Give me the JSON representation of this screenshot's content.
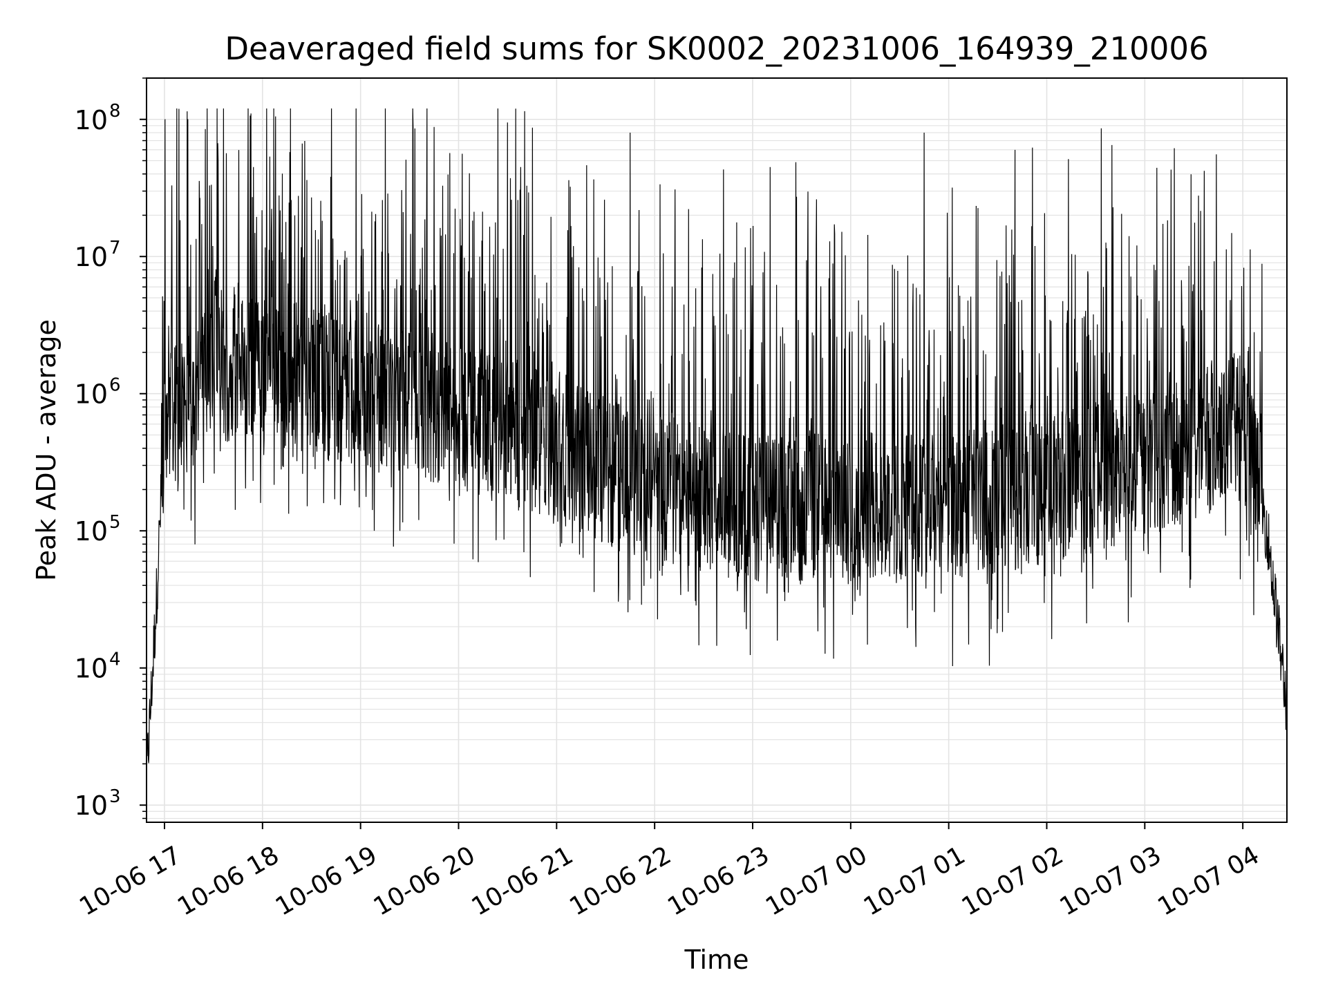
{
  "chart_data": {
    "type": "line",
    "title": "Deaveraged field sums for SK0002_20231006_164939_210006",
    "xlabel": "Time",
    "ylabel": "Peak ADU - average",
    "x_type": "datetime",
    "xlim": [
      "2023-10-06 16:49",
      "2023-10-07 04:27"
    ],
    "yscale": "log",
    "ylim": [
      750,
      200000000
    ],
    "grid": true,
    "line_color": "#000000",
    "grid_color": "#e3e3e3",
    "x_ticks": [
      {
        "t": "2023-10-06 17:00",
        "label": "10-06 17"
      },
      {
        "t": "2023-10-06 18:00",
        "label": "10-06 18"
      },
      {
        "t": "2023-10-06 19:00",
        "label": "10-06 19"
      },
      {
        "t": "2023-10-06 20:00",
        "label": "10-06 20"
      },
      {
        "t": "2023-10-06 21:00",
        "label": "10-06 21"
      },
      {
        "t": "2023-10-06 22:00",
        "label": "10-06 22"
      },
      {
        "t": "2023-10-06 23:00",
        "label": "10-06 23"
      },
      {
        "t": "2023-10-07 00:00",
        "label": "10-07 00"
      },
      {
        "t": "2023-10-07 01:00",
        "label": "10-07 01"
      },
      {
        "t": "2023-10-07 02:00",
        "label": "10-07 02"
      },
      {
        "t": "2023-10-07 03:00",
        "label": "10-07 03"
      },
      {
        "t": "2023-10-07 04:00",
        "label": "10-07 04"
      }
    ],
    "y_ticks": [
      {
        "value": 1000,
        "base": "10",
        "exp": "3"
      },
      {
        "value": 10000,
        "base": "10",
        "exp": "4"
      },
      {
        "value": 100000,
        "base": "10",
        "exp": "5"
      },
      {
        "value": 1000000,
        "base": "10",
        "exp": "6"
      },
      {
        "value": 10000000,
        "base": "10",
        "exp": "7"
      },
      {
        "value": 100000000,
        "base": "10",
        "exp": "8"
      }
    ],
    "series": [
      {
        "values_hourly_baseline": [
          {
            "t": "2023-10-06 16:49",
            "y": 1500
          },
          {
            "t": "2023-10-06 16:55",
            "y": 30000
          },
          {
            "t": "2023-10-06 17:00",
            "y": 600000
          },
          {
            "t": "2023-10-06 17:30",
            "y": 1500000
          },
          {
            "t": "2023-10-06 18:00",
            "y": 1500000
          },
          {
            "t": "2023-10-06 19:00",
            "y": 1000000
          },
          {
            "t": "2023-10-06 20:00",
            "y": 700000
          },
          {
            "t": "2023-10-06 21:00",
            "y": 400000
          },
          {
            "t": "2023-10-06 22:00",
            "y": 200000
          },
          {
            "t": "2023-10-06 23:00",
            "y": 150000
          },
          {
            "t": "2023-10-07 00:00",
            "y": 150000
          },
          {
            "t": "2023-10-07 01:00",
            "y": 150000
          },
          {
            "t": "2023-10-07 02:00",
            "y": 200000
          },
          {
            "t": "2023-10-07 03:00",
            "y": 300000
          },
          {
            "t": "2023-10-07 04:00",
            "y": 600000
          },
          {
            "t": "2023-10-07 04:15",
            "y": 100000
          },
          {
            "t": "2023-10-07 04:27",
            "y": 5000
          }
        ],
        "peaks": [
          {
            "t": "2023-10-06 17:25",
            "y": 85000000
          },
          {
            "t": "2023-10-06 18:08",
            "y": 105000000
          },
          {
            "t": "2023-10-06 19:45",
            "y": 88000000
          },
          {
            "t": "2023-10-06 20:30",
            "y": 95000000
          },
          {
            "t": "2023-10-06 21:45",
            "y": 80000000
          },
          {
            "t": "2023-10-07 00:45",
            "y": 80000000
          },
          {
            "t": "2023-10-07 02:40",
            "y": 65000000
          }
        ]
      }
    ]
  }
}
